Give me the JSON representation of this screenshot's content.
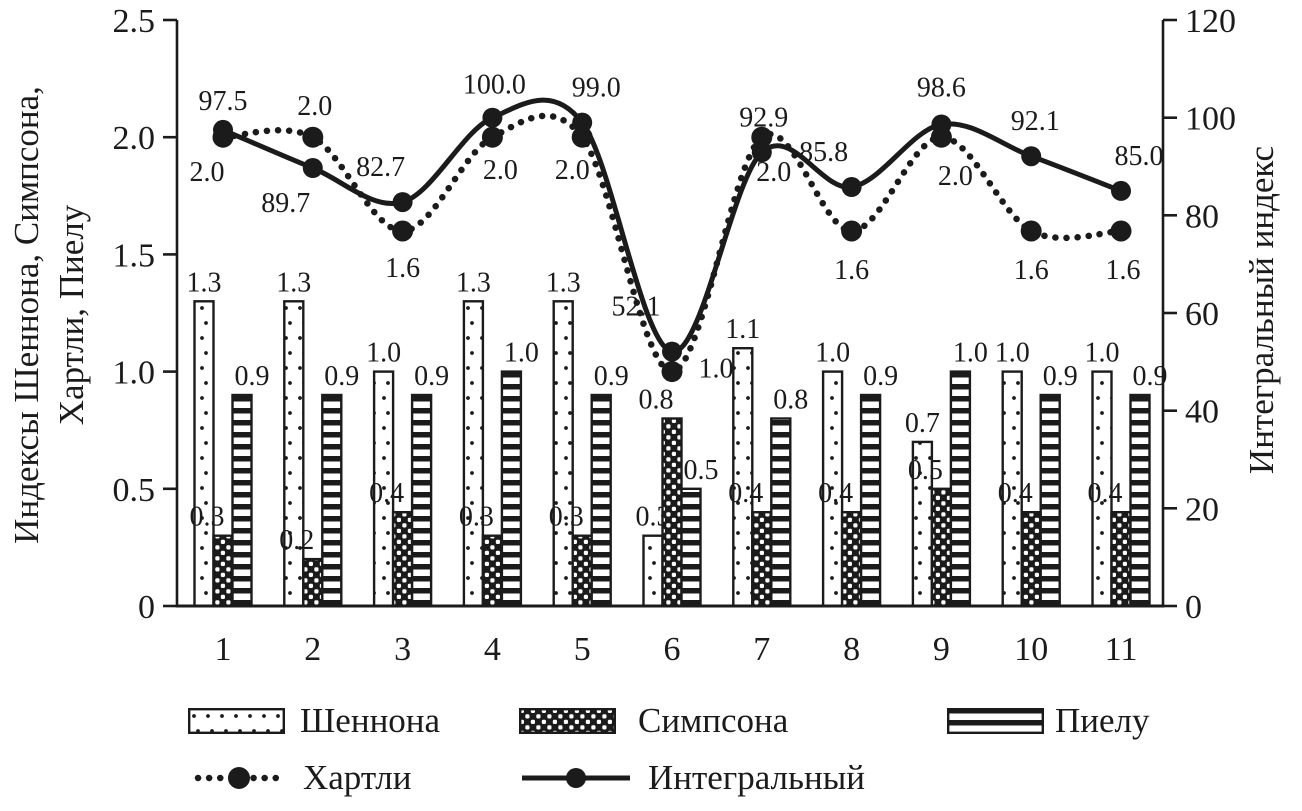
{
  "figure": {
    "background": "#ffffff",
    "ink": "#1b1b1b"
  },
  "chart_data": {
    "type": "bar+line combo",
    "categories": [
      "1",
      "2",
      "3",
      "4",
      "5",
      "6",
      "7",
      "8",
      "9",
      "10",
      "11"
    ],
    "left_axis": {
      "label_line1": "Индексы Шеннона, Симпсона,",
      "label_line2": "Хартли, Пиелу",
      "min": 0,
      "max": 2.5,
      "ticks": [
        0,
        0.5,
        1.0,
        1.5,
        2.0,
        2.5
      ]
    },
    "right_axis": {
      "label": "Интегральный индекс",
      "min": 0,
      "max": 120,
      "ticks": [
        0,
        20,
        40,
        60,
        80,
        100,
        120
      ]
    },
    "series": [
      {
        "name": "Шеннона",
        "type": "bar",
        "pattern": "dots",
        "axis": "left",
        "values": [
          1.3,
          1.3,
          1.0,
          1.3,
          1.3,
          0.3,
          1.1,
          1.0,
          0.7,
          1.0,
          1.0
        ]
      },
      {
        "name": "Симпсона",
        "type": "bar",
        "pattern": "checker",
        "axis": "left",
        "values": [
          0.3,
          0.2,
          0.4,
          0.3,
          0.3,
          0.8,
          0.4,
          0.4,
          0.5,
          0.4,
          0.4
        ]
      },
      {
        "name": "Пиелу",
        "type": "bar",
        "pattern": "hstripes",
        "axis": "left",
        "values": [
          0.9,
          0.9,
          0.9,
          1.0,
          0.9,
          0.5,
          0.8,
          0.9,
          1.0,
          0.9,
          0.9
        ]
      },
      {
        "name": "Хартли",
        "type": "line",
        "style": "dotted",
        "axis": "left",
        "values": [
          2.0,
          2.0,
          1.6,
          2.0,
          2.0,
          1.0,
          2.0,
          1.6,
          2.0,
          1.6,
          1.6
        ]
      },
      {
        "name": "Интегральный",
        "type": "line",
        "style": "solid",
        "axis": "right",
        "values": [
          97.5,
          89.7,
          82.7,
          100.0,
          99.0,
          52.1,
          92.9,
          85.8,
          98.6,
          92.1,
          85.0
        ]
      }
    ],
    "grid": false,
    "legend_position": "bottom",
    "data_labels": true
  },
  "legend": {
    "items": [
      {
        "label": "Шеннона",
        "swatch": "dots-bar"
      },
      {
        "label": "Симпсона",
        "swatch": "checker-bar"
      },
      {
        "label": "Пиелу",
        "swatch": "hstripes-bar"
      },
      {
        "label": "Хартли",
        "swatch": "dotted-line-marker"
      },
      {
        "label": "Интегральный",
        "swatch": "solid-line-marker"
      }
    ]
  }
}
